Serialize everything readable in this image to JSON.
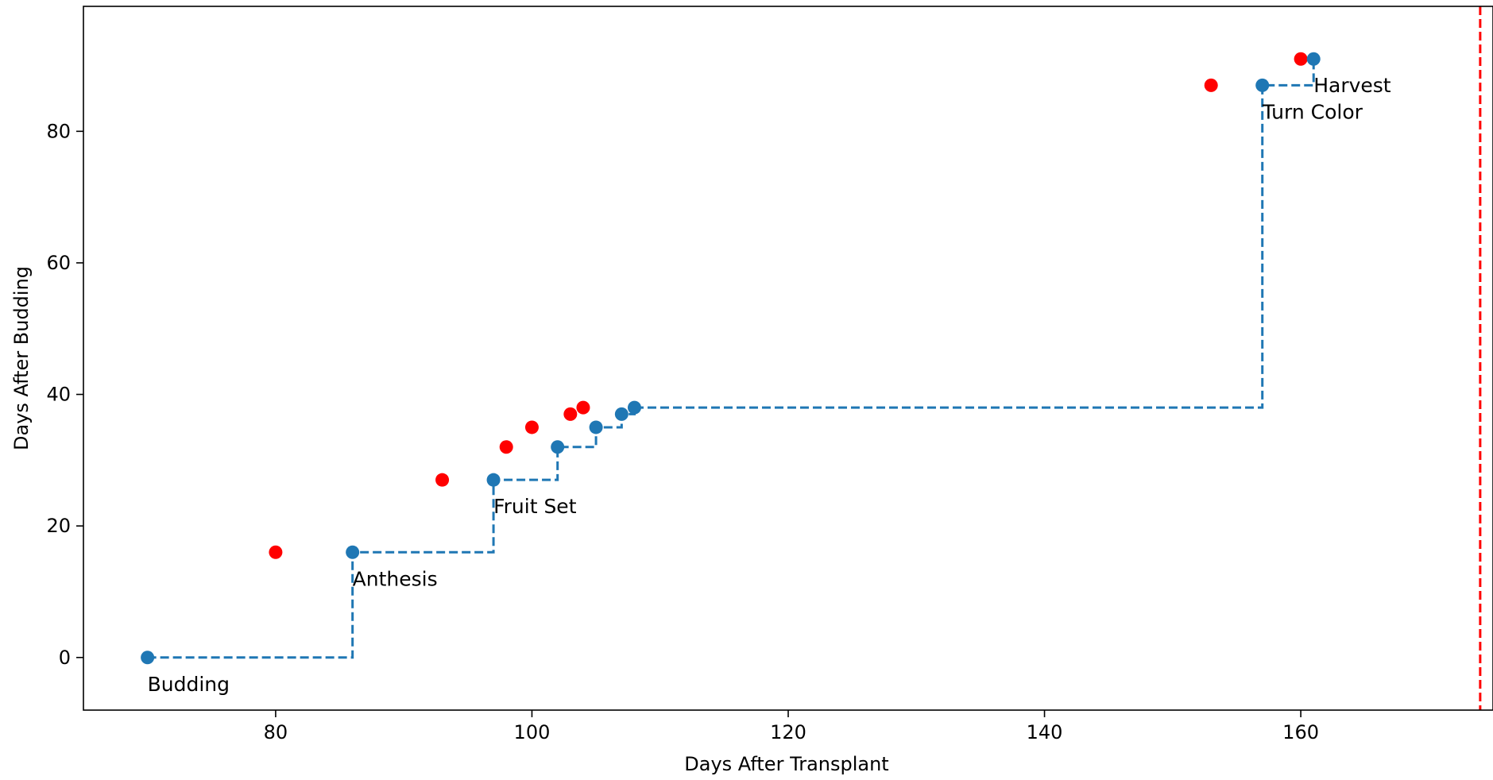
{
  "chart_data": {
    "type": "line",
    "title": "",
    "xlabel": "Days After Transplant",
    "ylabel": "Days After Budding",
    "xlim": [
      65,
      175
    ],
    "ylim": [
      -8,
      99
    ],
    "x_ticks": [
      80,
      100,
      120,
      140,
      160
    ],
    "y_ticks": [
      0,
      20,
      40,
      60,
      80
    ],
    "grid": false,
    "legend": "none",
    "series": [
      {
        "style": "step-post, dashed, blue circles",
        "color": "#1f77b4",
        "points": [
          {
            "x": 70,
            "y": 0
          },
          {
            "x": 86,
            "y": 16
          },
          {
            "x": 97,
            "y": 27
          },
          {
            "x": 102,
            "y": 32
          },
          {
            "x": 105,
            "y": 35
          },
          {
            "x": 107,
            "y": 37
          },
          {
            "x": 108,
            "y": 38
          },
          {
            "x": 157,
            "y": 87
          },
          {
            "x": 161,
            "y": 91
          }
        ]
      },
      {
        "style": "red circles",
        "color": "#ff0000",
        "points": [
          {
            "x": 80,
            "y": 16
          },
          {
            "x": 93,
            "y": 27
          },
          {
            "x": 98,
            "y": 32
          },
          {
            "x": 100,
            "y": 35
          },
          {
            "x": 103,
            "y": 37
          },
          {
            "x": 104,
            "y": 38
          },
          {
            "x": 153,
            "y": 87
          },
          {
            "x": 160,
            "y": 91
          }
        ]
      }
    ],
    "annotations": [
      {
        "text": "Budding",
        "x": 70,
        "y": 0
      },
      {
        "text": "Anthesis",
        "x": 86,
        "y": 16
      },
      {
        "text": "Fruit Set",
        "x": 97,
        "y": 27
      },
      {
        "text": "Turn Color",
        "x": 157,
        "y": 87
      },
      {
        "text": "Harvest",
        "x": 161,
        "y": 91
      }
    ],
    "reference_line": {
      "orientation": "vertical",
      "x": 174,
      "color": "#ff0000",
      "style": "dashed"
    }
  }
}
